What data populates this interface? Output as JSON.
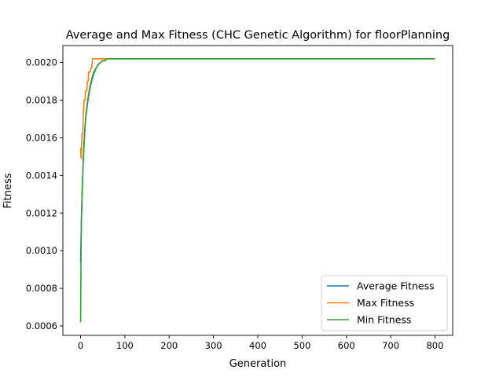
{
  "chart_data": {
    "type": "line",
    "title": "Average and Max Fitness (CHC Genetic Algorithm) for floorPlanning",
    "xlabel": "Generation",
    "ylabel": "Fitness",
    "xlim": [
      -40,
      840
    ],
    "ylim": [
      0.00055,
      0.00209
    ],
    "xticks": [
      0,
      100,
      200,
      300,
      400,
      500,
      600,
      700,
      800
    ],
    "yticks": [
      0.0006,
      0.0008,
      0.001,
      0.0012,
      0.0014,
      0.0016,
      0.0018,
      0.002
    ],
    "grid": false,
    "legend_position": "lower right",
    "series": [
      {
        "name": "Average Fitness",
        "color": "#1f77b4",
        "points": [
          [
            0,
            0.00094
          ],
          [
            2,
            0.00118
          ],
          [
            4,
            0.00135
          ],
          [
            6,
            0.00148
          ],
          [
            8,
            0.00158
          ],
          [
            10,
            0.00166
          ],
          [
            12,
            0.00172
          ],
          [
            15,
            0.00178
          ],
          [
            18,
            0.00183
          ],
          [
            22,
            0.00188
          ],
          [
            26,
            0.00192
          ],
          [
            30,
            0.00195
          ],
          [
            35,
            0.00197
          ],
          [
            40,
            0.00199
          ],
          [
            45,
            0.002
          ],
          [
            50,
            0.00201
          ],
          [
            55,
            0.00201
          ],
          [
            60,
            0.00202
          ],
          [
            100,
            0.00202
          ],
          [
            200,
            0.00202
          ],
          [
            400,
            0.00202
          ],
          [
            600,
            0.00202
          ],
          [
            800,
            0.00202
          ]
        ]
      },
      {
        "name": "Max Fitness",
        "color": "#ff7f0e",
        "points": [
          [
            0,
            0.00155
          ],
          [
            1,
            0.00149
          ],
          [
            2,
            0.00154
          ],
          [
            3,
            0.00162
          ],
          [
            5,
            0.00162
          ],
          [
            6,
            0.00172
          ],
          [
            8,
            0.0018
          ],
          [
            10,
            0.0018
          ],
          [
            11,
            0.00185
          ],
          [
            14,
            0.00185
          ],
          [
            15,
            0.0019
          ],
          [
            17,
            0.0019
          ],
          [
            18,
            0.00195
          ],
          [
            22,
            0.00195
          ],
          [
            23,
            0.00197
          ],
          [
            25,
            0.00197
          ],
          [
            27,
            0.00202
          ],
          [
            30,
            0.00202
          ],
          [
            100,
            0.00202
          ],
          [
            200,
            0.00202
          ],
          [
            400,
            0.00202
          ],
          [
            600,
            0.00202
          ],
          [
            800,
            0.00202
          ]
        ]
      },
      {
        "name": "Min Fitness",
        "color": "#2ca02c",
        "points": [
          [
            0,
            0.00062
          ],
          [
            1,
            0.00098
          ],
          [
            2,
            0.00118
          ],
          [
            4,
            0.00135
          ],
          [
            6,
            0.00148
          ],
          [
            8,
            0.00158
          ],
          [
            10,
            0.00166
          ],
          [
            12,
            0.00171
          ],
          [
            15,
            0.00177
          ],
          [
            18,
            0.00182
          ],
          [
            22,
            0.00187
          ],
          [
            26,
            0.00191
          ],
          [
            30,
            0.00194
          ],
          [
            35,
            0.00197
          ],
          [
            40,
            0.00199
          ],
          [
            45,
            0.002
          ],
          [
            50,
            0.00201
          ],
          [
            55,
            0.00201
          ],
          [
            60,
            0.00202
          ],
          [
            100,
            0.00202
          ],
          [
            200,
            0.00202
          ],
          [
            400,
            0.00202
          ],
          [
            600,
            0.00202
          ],
          [
            800,
            0.00202
          ]
        ]
      }
    ]
  }
}
